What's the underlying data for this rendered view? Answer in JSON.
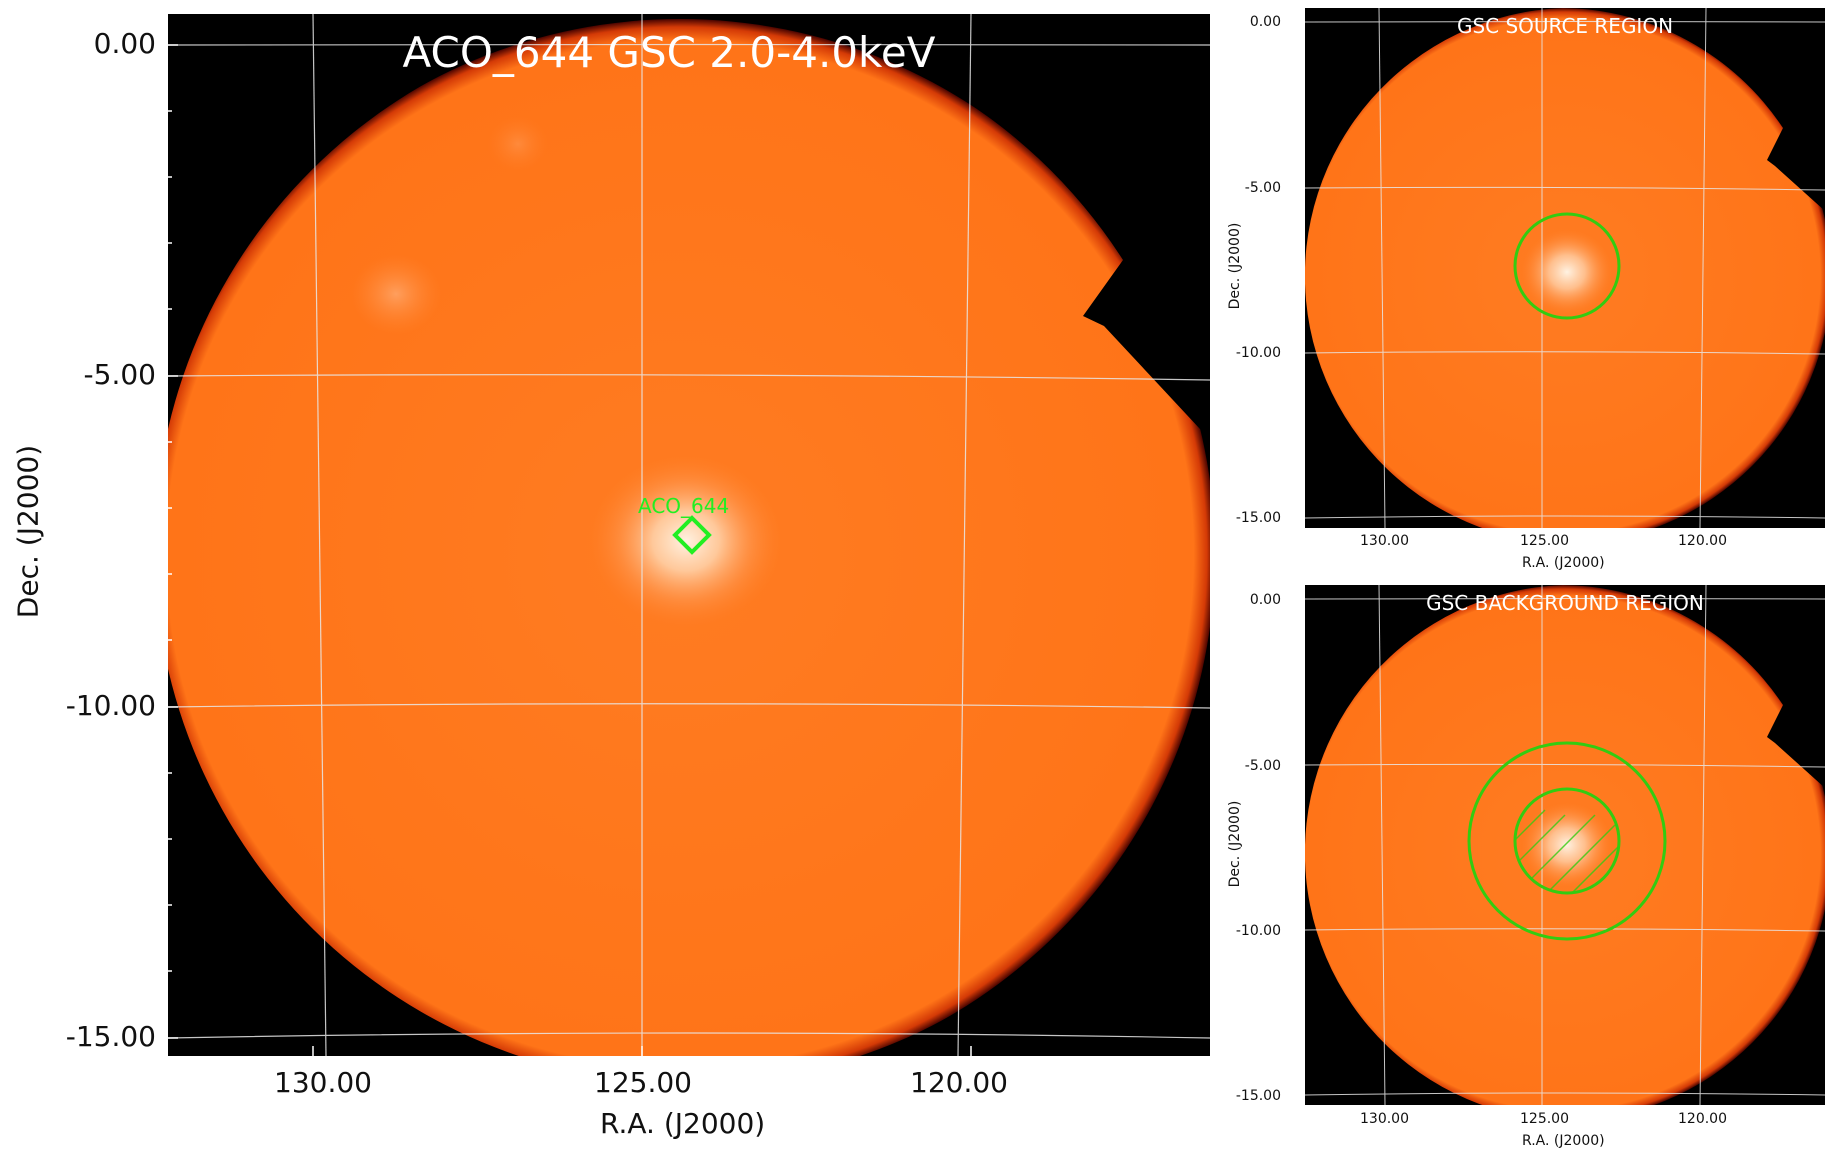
{
  "main": {
    "title": "ACO_644 GSC 2.0-4.0keV",
    "source_label": "ACO_644",
    "marker_color": "#22ee22",
    "yticks": [
      "0.00",
      "-5.00",
      "-10.00",
      "-15.00"
    ],
    "xticks": [
      "130.00",
      "125.00",
      "120.00"
    ],
    "xlabel": "R.A. (J2000)",
    "ylabel": "Dec. (J2000)"
  },
  "source_panel": {
    "title": "GSC SOURCE REGION",
    "yticks": [
      "0.00",
      "-5.00",
      "-10.00",
      "-15.00"
    ],
    "xticks": [
      "130.00",
      "125.00",
      "120.00"
    ],
    "xlabel": "R.A. (J2000)",
    "ylabel": "Dec. (J2000)",
    "region_color": "#33cc11"
  },
  "background_panel": {
    "title": "GSC BACKGROUND REGION",
    "yticks": [
      "0.00",
      "-5.00",
      "-10.00",
      "-15.00"
    ],
    "xticks": [
      "130.00",
      "125.00",
      "120.00"
    ],
    "xlabel": "R.A. (J2000)",
    "ylabel": "Dec. (J2000)",
    "region_color": "#33cc11"
  },
  "colors": {
    "background": "#000000",
    "field": "#ff7a1f",
    "edge": "#8a0a00",
    "bright_core": "#fff0dc",
    "grid": "#e8e8e8"
  }
}
